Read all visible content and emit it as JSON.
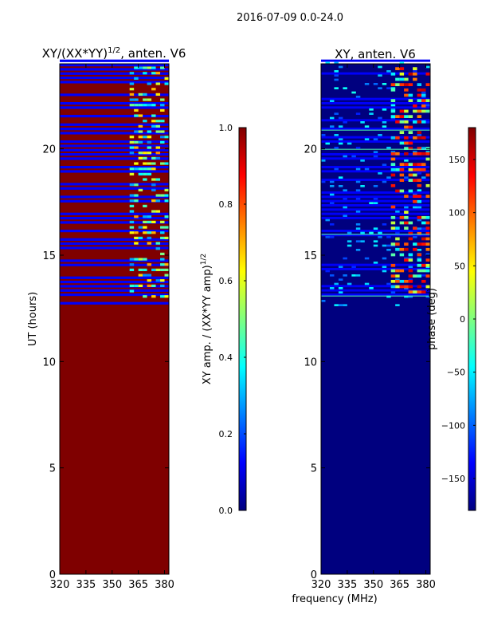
{
  "suptitle": "2016-07-09 0.0-24.0",
  "colors": {
    "jet": [
      "#00007f",
      "#0000ff",
      "#007fff",
      "#00ffff",
      "#7fff7f",
      "#ffff00",
      "#ff7f00",
      "#ff0000",
      "#7f0000"
    ],
    "background": "#ffffff",
    "axis": "#000000"
  },
  "chart_data": [
    {
      "type": "heatmap",
      "title_main": "XY/(XX*YY)",
      "title_sup": "1/2",
      "title_tail": ", anten. V6",
      "xlabel": "",
      "ylabel": "UT (hours)",
      "x_range": [
        320,
        382.5
      ],
      "y_range": [
        0,
        24
      ],
      "xticks": [
        320,
        335,
        350,
        365,
        380
      ],
      "yticks": [
        0,
        5,
        10,
        15,
        20
      ],
      "colorbar": {
        "label_main": "XY amp. / (XX*YY amp)",
        "label_sup": "1/2",
        "range": [
          0.0,
          1.0
        ],
        "ticks": [
          "0.0",
          "0.2",
          "0.4",
          "0.6",
          "0.8",
          "1.0"
        ],
        "tick_values": [
          0.0,
          0.2,
          0.4,
          0.6,
          0.8,
          1.0
        ]
      },
      "background_value": 1.0,
      "data_region_hours": [
        12.6,
        24.0
      ],
      "band_interval_hours": 0.2,
      "band_pattern_value": 0.12,
      "active_freq_range_mhz": [
        360,
        382.5
      ]
    },
    {
      "type": "heatmap",
      "title_main": "XY, anten. V6",
      "xlabel": "frequency (MHz)",
      "ylabel": "",
      "x_range": [
        320,
        382.5
      ],
      "y_range": [
        0,
        24
      ],
      "xticks": [
        320,
        335,
        350,
        365,
        380
      ],
      "yticks": [
        0,
        5,
        10,
        15,
        20
      ],
      "colorbar": {
        "label_main": "phase (deg)",
        "range": [
          -180,
          180
        ],
        "ticks": [
          "−150",
          "−100",
          "−50",
          "0",
          "50",
          "100",
          "150"
        ],
        "tick_values": [
          -150,
          -100,
          -50,
          0,
          50,
          100,
          150
        ]
      },
      "background_value": -180,
      "data_region_hours": [
        12.6,
        24.0
      ],
      "band_interval_hours": 0.2,
      "active_freq_range_mhz": [
        360,
        382.5
      ]
    }
  ]
}
